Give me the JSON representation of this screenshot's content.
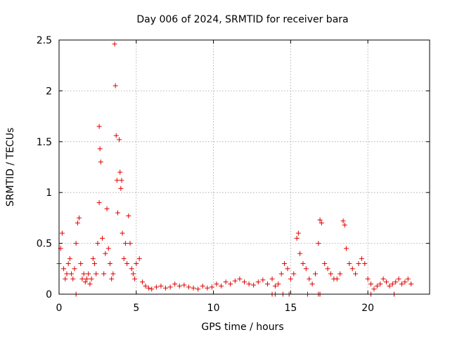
{
  "chart_data": {
    "type": "scatter",
    "title": "Day 006 of 2024, SRMTID for receiver bara",
    "xlabel": "GPS time / hours",
    "ylabel": "SRMTID / TECUs",
    "xlim": [
      0,
      24
    ],
    "ylim": [
      0,
      2.5
    ],
    "xticks": [
      0,
      5,
      10,
      15,
      20
    ],
    "xtick_labels": [
      "0",
      "5",
      "10",
      "15",
      "20"
    ],
    "yticks": [
      0,
      0.5,
      1,
      1.5,
      2,
      2.5
    ],
    "ytick_labels": [
      "0",
      "0.5",
      "1",
      "1.5",
      "2",
      "2.5"
    ],
    "grid": true,
    "marker": "plus",
    "color": "#e00000",
    "series": [
      {
        "name": "SRMTID",
        "x": [
          0.0,
          0.1,
          0.2,
          0.3,
          0.4,
          0.5,
          0.6,
          0.7,
          0.8,
          0.9,
          1.0,
          1.1,
          1.2,
          1.3,
          1.4,
          1.5,
          1.6,
          1.7,
          1.8,
          1.9,
          2.0,
          2.1,
          2.2,
          2.3,
          2.4,
          2.5,
          2.6,
          2.6,
          2.65,
          2.7,
          2.8,
          2.9,
          3.0,
          3.1,
          3.2,
          3.3,
          3.4,
          3.5,
          3.6,
          3.65,
          3.7,
          3.75,
          3.8,
          3.9,
          3.95,
          4.0,
          4.05,
          4.1,
          4.2,
          4.3,
          4.4,
          4.5,
          4.6,
          4.7,
          4.8,
          4.9,
          5.0,
          5.2,
          5.4,
          5.6,
          5.8,
          6.0,
          6.3,
          6.6,
          6.9,
          7.2,
          7.5,
          7.8,
          8.1,
          8.4,
          8.7,
          9.0,
          9.3,
          9.6,
          9.9,
          10.2,
          10.5,
          10.8,
          11.1,
          11.4,
          11.7,
          12.0,
          12.3,
          12.6,
          12.9,
          13.2,
          13.5,
          13.8,
          14.0,
          14.2,
          14.4,
          14.6,
          14.8,
          15.0,
          15.2,
          15.4,
          15.5,
          15.6,
          15.8,
          16.0,
          16.2,
          16.4,
          16.6,
          16.8,
          16.9,
          17.0,
          17.2,
          17.4,
          17.6,
          17.8,
          18.0,
          18.2,
          18.4,
          18.5,
          18.6,
          18.8,
          19.0,
          19.2,
          19.4,
          19.6,
          19.8,
          20.0,
          20.2,
          20.4,
          20.6,
          20.8,
          21.0,
          21.2,
          21.4,
          21.6,
          21.8,
          22.0,
          22.2,
          22.4,
          22.6,
          22.8,
          1.1,
          13.8,
          14.0,
          14.5,
          14.9,
          16.1,
          16.8,
          16.9,
          20.2,
          21.7
        ],
        "y": [
          0.3,
          0.45,
          0.6,
          0.25,
          0.15,
          0.2,
          0.3,
          0.35,
          0.2,
          0.15,
          0.25,
          0.5,
          0.7,
          0.75,
          0.3,
          0.15,
          0.2,
          0.12,
          0.15,
          0.2,
          0.1,
          0.15,
          0.35,
          0.3,
          0.2,
          0.5,
          0.9,
          1.65,
          1.43,
          1.3,
          0.55,
          0.2,
          0.4,
          0.84,
          0.45,
          0.3,
          0.15,
          0.2,
          2.46,
          2.05,
          1.56,
          1.12,
          0.8,
          1.52,
          1.2,
          1.04,
          1.12,
          0.6,
          0.35,
          0.5,
          0.3,
          0.77,
          0.5,
          0.25,
          0.2,
          0.15,
          0.3,
          0.35,
          0.12,
          0.08,
          0.06,
          0.05,
          0.07,
          0.08,
          0.06,
          0.07,
          0.1,
          0.08,
          0.09,
          0.07,
          0.06,
          0.05,
          0.08,
          0.06,
          0.07,
          0.1,
          0.08,
          0.12,
          0.1,
          0.13,
          0.15,
          0.12,
          0.1,
          0.09,
          0.12,
          0.14,
          0.1,
          0.15,
          0.08,
          0.1,
          0.2,
          0.3,
          0.25,
          0.15,
          0.2,
          0.55,
          0.6,
          0.4,
          0.3,
          0.25,
          0.15,
          0.1,
          0.2,
          0.5,
          0.73,
          0.7,
          0.3,
          0.25,
          0.2,
          0.15,
          0.15,
          0.2,
          0.72,
          0.68,
          0.45,
          0.3,
          0.25,
          0.2,
          0.3,
          0.35,
          0.3,
          0.15,
          0.1,
          0.05,
          0.08,
          0.1,
          0.15,
          0.12,
          0.08,
          0.1,
          0.12,
          0.15,
          0.1,
          0.12,
          0.15,
          0.1,
          0.0,
          0.0,
          0.0,
          0.0,
          0.0,
          0.0,
          0.0,
          0.0,
          0.0,
          0.0
        ]
      }
    ]
  }
}
